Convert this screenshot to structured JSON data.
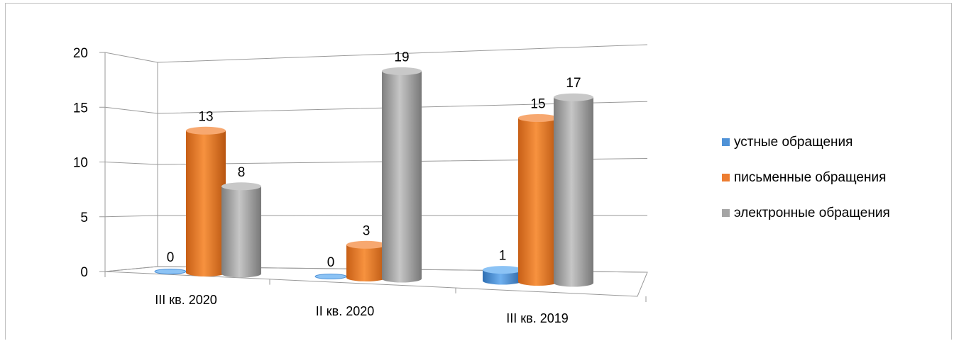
{
  "chart_data": {
    "type": "bar",
    "title": "",
    "xlabel": "",
    "ylabel": "",
    "categories": [
      "III кв. 2020",
      "II кв. 2020",
      "III кв. 2019"
    ],
    "ylim": [
      0,
      20
    ],
    "yticks": [
      "0",
      "5",
      "10",
      "15",
      "20"
    ],
    "grid": true,
    "legend_position": "right",
    "series": [
      {
        "name": "устные обращения",
        "color": "#4f92d7",
        "values": [
          0,
          0,
          1
        ],
        "labels": [
          "0",
          "0",
          "1"
        ]
      },
      {
        "name": "письменные обращения",
        "color": "#ed7d31",
        "values": [
          13,
          3,
          15
        ],
        "labels": [
          "13",
          "3",
          "15"
        ]
      },
      {
        "name": "электронные обращения",
        "color": "#a5a5a5",
        "values": [
          8,
          19,
          17
        ],
        "labels": [
          "8",
          "19",
          "17"
        ]
      }
    ]
  }
}
